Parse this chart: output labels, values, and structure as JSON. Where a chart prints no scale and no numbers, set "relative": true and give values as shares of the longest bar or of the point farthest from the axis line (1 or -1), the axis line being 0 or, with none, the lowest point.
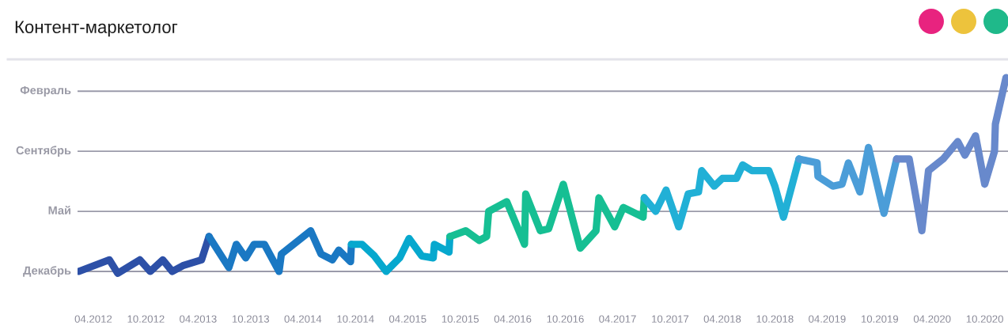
{
  "chart_data": {
    "type": "line",
    "title": "Контент-маркетолог",
    "relative": true,
    "xlim": [
      "2012-02-06",
      "2020-12-21"
    ],
    "xticks": [
      {
        "value": "2012-04",
        "label": "04.2012"
      },
      {
        "value": "2012-10",
        "label": "10.2012"
      },
      {
        "value": "2013-04",
        "label": "04.2013"
      },
      {
        "value": "2013-10",
        "label": "10.2013"
      },
      {
        "value": "2014-04",
        "label": "04.2014"
      },
      {
        "value": "2014-10",
        "label": "10.2014"
      },
      {
        "value": "2015-04",
        "label": "04.2015"
      },
      {
        "value": "2015-10",
        "label": "10.2015"
      },
      {
        "value": "2016-04",
        "label": "04.2016"
      },
      {
        "value": "2016-10",
        "label": "10.2016"
      },
      {
        "value": "2017-04",
        "label": "04.2017"
      },
      {
        "value": "2017-10",
        "label": "10.2017"
      },
      {
        "value": "2018-04",
        "label": "04.2018"
      },
      {
        "value": "2018-10",
        "label": "10.2018"
      },
      {
        "value": "2019-04",
        "label": "04.2019"
      },
      {
        "value": "2019-10",
        "label": "10.2019"
      },
      {
        "value": "2020-04",
        "label": "04.2020"
      },
      {
        "value": "2020-10",
        "label": "10.2020"
      }
    ],
    "ref_lines": [
      {
        "axis": "y",
        "value": 0,
        "label": "Декабрь",
        "color": "#9b9baa"
      },
      {
        "axis": "y",
        "value": 0.31,
        "label": "Май",
        "color": "#9b9baa"
      },
      {
        "axis": "y",
        "value": 0.62,
        "label": "Сентябрь",
        "color": "#9b9baa"
      },
      {
        "axis": "y",
        "value": 0.93,
        "label": "Февраль",
        "color": "#9b9baa"
      }
    ],
    "line_style": "solid",
    "series": [
      {
        "color": "#2d50a7",
        "x": [
          "2012-02-10",
          "2012-05-27",
          "2012-06-25",
          "2012-09-10",
          "2012-10-16",
          "2012-11-29",
          "2013-01-01",
          "2013-02-07",
          "2013-04-13",
          "2013-05-09"
        ],
        "values": [
          0.0,
          0.06,
          -0.01,
          0.06,
          0.0,
          0.06,
          0.0,
          0.03,
          0.06,
          0.18
        ]
      },
      {
        "color": "#1a78c3",
        "x": [
          "2013-05-09",
          "2013-07-17",
          "2013-08-12",
          "2013-09-14",
          "2013-10-13",
          "2013-11-18",
          "2014-01-08",
          "2014-01-16",
          "2014-04-28",
          "2014-06-03",
          "2014-07-13",
          "2014-08-04",
          "2014-09-14",
          "2014-09-17"
        ],
        "values": [
          0.18,
          0.02,
          0.14,
          0.07,
          0.14,
          0.14,
          0.0,
          0.09,
          0.21,
          0.09,
          0.06,
          0.11,
          0.05,
          0.14
        ]
      },
      {
        "color": "#06a8ce",
        "x": [
          "2014-09-17",
          "2014-10-24",
          "2014-12-06",
          "2015-01-16",
          "2015-03-04",
          "2015-04-06",
          "2015-05-20",
          "2015-06-29",
          "2015-07-03",
          "2015-08-23",
          "2015-08-26"
        ],
        "values": [
          0.14,
          0.14,
          0.08,
          0.0,
          0.07,
          0.17,
          0.08,
          0.07,
          0.14,
          0.1,
          0.18
        ]
      },
      {
        "color": "#16bf93",
        "x": [
          "2015-08-26",
          "2015-10-20",
          "2015-12-06",
          "2016-01-01",
          "2016-01-08",
          "2016-03-11",
          "2016-05-12",
          "2016-05-16",
          "2016-07-06",
          "2016-08-04",
          "2016-09-24",
          "2016-11-22",
          "2017-01-16",
          "2017-01-26",
          "2017-03-22",
          "2017-04-21",
          "2017-06-29",
          "2017-07-03"
        ],
        "values": [
          0.18,
          0.21,
          0.16,
          0.18,
          0.31,
          0.36,
          0.14,
          0.4,
          0.21,
          0.22,
          0.45,
          0.12,
          0.21,
          0.38,
          0.23,
          0.33,
          0.28,
          0.38
        ]
      },
      {
        "color": "#21b0d6",
        "x": [
          "2017-07-03",
          "2017-08-12",
          "2017-09-17",
          "2017-10-31",
          "2017-12-03",
          "2018-01-08",
          "2018-01-19",
          "2018-03-04",
          "2018-04-01",
          "2018-05-20",
          "2018-06-11",
          "2018-07-13",
          "2018-09-10",
          "2018-10-01",
          "2018-10-31",
          "2018-12-24"
        ],
        "values": [
          0.38,
          0.31,
          0.42,
          0.23,
          0.4,
          0.41,
          0.52,
          0.44,
          0.48,
          0.48,
          0.55,
          0.52,
          0.52,
          0.44,
          0.28,
          0.58
        ]
      },
      {
        "color": "#4b9dd8",
        "x": [
          "2018-12-24",
          "2019-02-25",
          "2019-02-28",
          "2019-04-21",
          "2019-05-23",
          "2019-06-14",
          "2019-07-24",
          "2019-08-23",
          "2019-10-16",
          "2019-11-29"
        ],
        "values": [
          0.58,
          0.56,
          0.49,
          0.44,
          0.45,
          0.56,
          0.41,
          0.64,
          0.3,
          0.58
        ]
      },
      {
        "color": "#6889cc",
        "x": [
          "2019-11-29",
          "2020-01-12",
          "2020-02-25",
          "2020-03-19",
          "2020-05-09",
          "2020-06-29",
          "2020-07-24",
          "2020-08-30",
          "2020-10-01",
          "2020-11-04",
          "2020-11-07",
          "2020-12-14"
        ],
        "values": [
          0.58,
          0.58,
          0.21,
          0.52,
          0.58,
          0.67,
          0.6,
          0.7,
          0.45,
          0.62,
          0.76,
          1.0
        ]
      }
    ]
  }
}
